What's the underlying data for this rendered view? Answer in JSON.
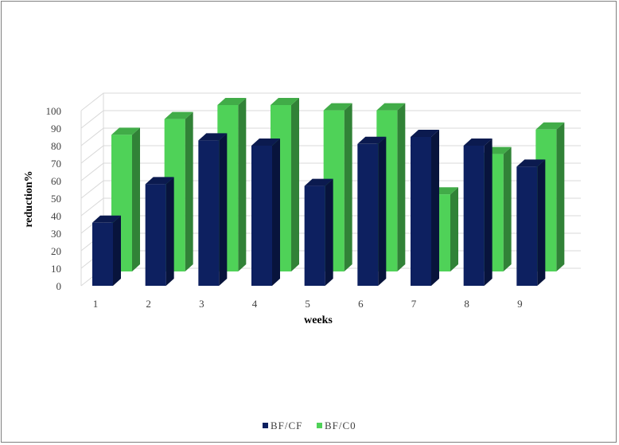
{
  "chart_data": {
    "type": "bar",
    "style": "3d-clustered-column",
    "categories": [
      "1",
      "2",
      "3",
      "4",
      "5",
      "6",
      "7",
      "8",
      "9"
    ],
    "series": [
      {
        "name": "BF/CF",
        "color": "#0d2060",
        "values": [
          36,
          58,
          83,
          80,
          57,
          81,
          85,
          80,
          68
        ]
      },
      {
        "name": "BF/C0",
        "color": "#4fd258",
        "values": [
          78,
          87,
          95,
          95,
          92,
          92,
          44,
          67,
          81
        ]
      }
    ],
    "xlabel": "weeks",
    "ylabel": "reduction%",
    "yticks": [
      0,
      10,
      20,
      30,
      40,
      50,
      60,
      70,
      80,
      90,
      100
    ],
    "ylim": [
      0,
      100
    ],
    "grid": true,
    "legend": "bottom-center"
  }
}
